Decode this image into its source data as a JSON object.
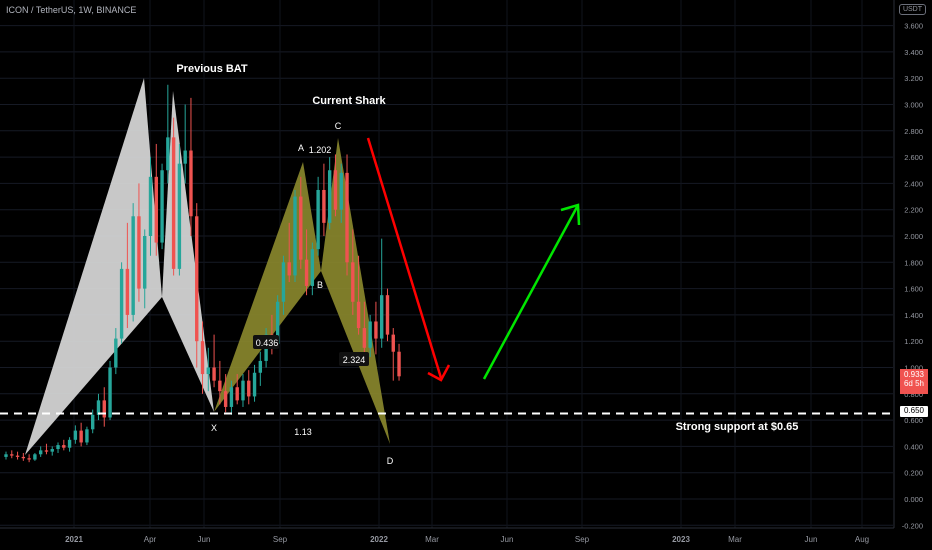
{
  "header": {
    "symbol_line": "ICON / TetherUS, 1W, BINANCE"
  },
  "currency_badge": "USDT",
  "colors": {
    "up": "#26a69a",
    "down": "#ef5350",
    "bat_fill": "#d9d9d9",
    "shark_fill": "#8c8a2e",
    "red_arrow": "#ff0000",
    "green_arrow": "#00e600",
    "support_line": "#ffffff"
  },
  "annotations": {
    "previous_bat": "Previous BAT",
    "current_shark": "Current Shark",
    "support_label": "Strong support at $0.65",
    "point_a": "A",
    "point_b": "B",
    "point_c": "C",
    "point_d": "D",
    "point_x": "X",
    "ratio_ab": "1.202",
    "ratio_xb": "0.436",
    "ratio_bc": "2.324",
    "ratio_xd": "1.13"
  },
  "price_tags": {
    "current_price": "0.933",
    "countdown": "6d 5h",
    "support_price": "0.650"
  },
  "chart_data": {
    "type": "candlestick",
    "title": "ICON / TetherUS, 1W, BINANCE",
    "y_axis": {
      "ticks": [
        "3.600",
        "3.400",
        "3.200",
        "3.000",
        "2.800",
        "2.600",
        "2.400",
        "2.200",
        "2.000",
        "1.800",
        "1.600",
        "1.400",
        "1.200",
        "1.000",
        "0.800",
        "0.600",
        "0.400",
        "0.200",
        "0.000",
        "-0.200"
      ],
      "tick_values": [
        3.6,
        3.4,
        3.2,
        3.0,
        2.8,
        2.6,
        2.4,
        2.2,
        2.0,
        1.8,
        1.6,
        1.4,
        1.2,
        1.0,
        0.8,
        0.6,
        0.4,
        0.2,
        0.0,
        -0.2
      ],
      "range": [
        -0.25,
        3.65
      ]
    },
    "x_axis": {
      "ticks": [
        "2021",
        "Apr",
        "Jun",
        "Sep",
        "2022",
        "Mar",
        "Jun",
        "Sep",
        "2023",
        "Mar",
        "Jun",
        "Aug"
      ]
    },
    "candles": [
      [
        0.32,
        0.36,
        0.3,
        0.34
      ],
      [
        0.34,
        0.37,
        0.31,
        0.33
      ],
      [
        0.33,
        0.36,
        0.3,
        0.32
      ],
      [
        0.32,
        0.35,
        0.29,
        0.31
      ],
      [
        0.31,
        0.34,
        0.28,
        0.3
      ],
      [
        0.3,
        0.35,
        0.29,
        0.34
      ],
      [
        0.34,
        0.4,
        0.32,
        0.37
      ],
      [
        0.37,
        0.42,
        0.34,
        0.36
      ],
      [
        0.36,
        0.4,
        0.33,
        0.38
      ],
      [
        0.38,
        0.43,
        0.35,
        0.41
      ],
      [
        0.41,
        0.45,
        0.37,
        0.39
      ],
      [
        0.39,
        0.47,
        0.36,
        0.45
      ],
      [
        0.45,
        0.56,
        0.42,
        0.52
      ],
      [
        0.52,
        0.58,
        0.4,
        0.43
      ],
      [
        0.43,
        0.55,
        0.41,
        0.53
      ],
      [
        0.53,
        0.68,
        0.5,
        0.64
      ],
      [
        0.64,
        0.8,
        0.6,
        0.75
      ],
      [
        0.75,
        0.85,
        0.55,
        0.62
      ],
      [
        0.62,
        1.05,
        0.6,
        1.0
      ],
      [
        1.0,
        1.3,
        0.95,
        1.22
      ],
      [
        1.22,
        1.8,
        1.18,
        1.75
      ],
      [
        1.75,
        2.1,
        1.3,
        1.4
      ],
      [
        1.4,
        2.25,
        1.35,
        2.15
      ],
      [
        2.15,
        2.4,
        1.5,
        1.6
      ],
      [
        1.6,
        2.05,
        1.45,
        2.0
      ],
      [
        2.0,
        2.6,
        1.85,
        2.45
      ],
      [
        2.45,
        2.7,
        1.85,
        1.95
      ],
      [
        1.95,
        2.55,
        1.9,
        2.5
      ],
      [
        2.5,
        3.15,
        2.4,
        2.75
      ],
      [
        2.75,
        2.9,
        1.7,
        1.75
      ],
      [
        1.75,
        2.7,
        1.7,
        2.55
      ],
      [
        2.55,
        3.0,
        2.4,
        2.65
      ],
      [
        2.65,
        3.05,
        2.0,
        2.15
      ],
      [
        2.15,
        2.25,
        1.0,
        1.2
      ],
      [
        1.2,
        1.35,
        0.8,
        0.95
      ],
      [
        0.95,
        1.15,
        0.82,
        1.0
      ],
      [
        1.0,
        1.25,
        0.85,
        0.9
      ],
      [
        0.9,
        1.05,
        0.72,
        0.82
      ],
      [
        0.82,
        0.95,
        0.66,
        0.7
      ],
      [
        0.7,
        0.9,
        0.64,
        0.85
      ],
      [
        0.85,
        0.95,
        0.72,
        0.75
      ],
      [
        0.75,
        0.95,
        0.7,
        0.9
      ],
      [
        0.9,
        0.98,
        0.72,
        0.78
      ],
      [
        0.78,
        1.02,
        0.74,
        0.96
      ],
      [
        0.96,
        1.12,
        0.86,
        1.05
      ],
      [
        1.05,
        1.3,
        1.0,
        1.25
      ],
      [
        1.25,
        1.4,
        1.1,
        1.18
      ],
      [
        1.18,
        1.55,
        1.15,
        1.5
      ],
      [
        1.5,
        1.85,
        1.4,
        1.8
      ],
      [
        1.8,
        2.1,
        1.65,
        1.7
      ],
      [
        1.7,
        2.35,
        1.65,
        2.3
      ],
      [
        2.3,
        2.45,
        1.75,
        1.82
      ],
      [
        1.82,
        2.05,
        1.55,
        1.62
      ],
      [
        1.62,
        1.95,
        1.55,
        1.9
      ],
      [
        1.9,
        2.45,
        1.85,
        2.35
      ],
      [
        2.35,
        2.55,
        2.0,
        2.1
      ],
      [
        2.1,
        2.6,
        2.05,
        2.5
      ],
      [
        2.5,
        2.62,
        2.15,
        2.2
      ],
      [
        2.2,
        2.55,
        2.1,
        2.48
      ],
      [
        2.48,
        2.62,
        1.7,
        1.8
      ],
      [
        1.8,
        2.05,
        1.4,
        1.5
      ],
      [
        1.5,
        1.85,
        1.25,
        1.3
      ],
      [
        1.3,
        1.5,
        1.05,
        1.15
      ],
      [
        1.15,
        1.4,
        1.08,
        1.35
      ],
      [
        1.35,
        1.5,
        1.1,
        1.22
      ],
      [
        1.22,
        1.98,
        1.15,
        1.55
      ],
      [
        1.55,
        1.6,
        1.2,
        1.25
      ],
      [
        1.25,
        1.3,
        0.9,
        1.12
      ],
      [
        1.12,
        1.18,
        0.9,
        0.933
      ]
    ]
  }
}
